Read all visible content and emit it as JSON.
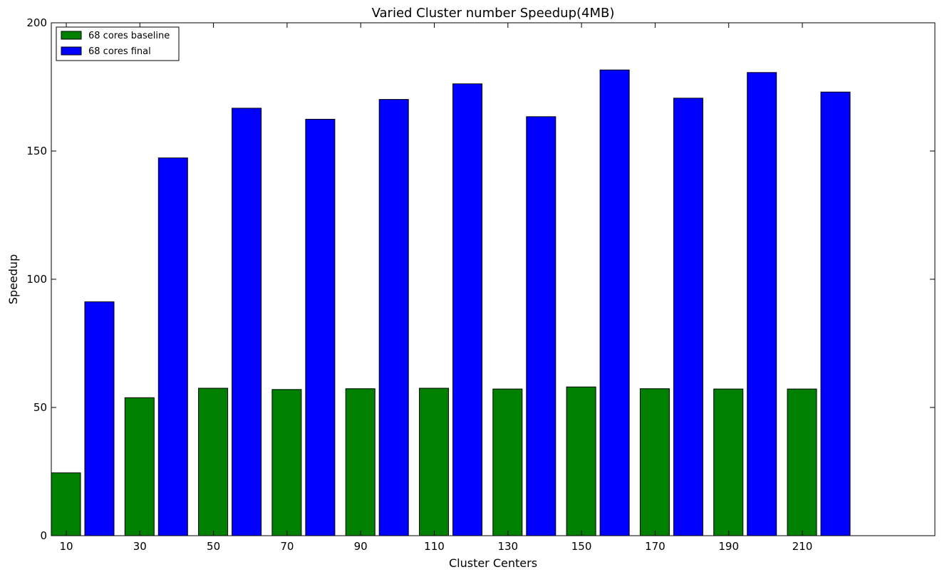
{
  "chart_data": {
    "type": "bar",
    "title": "Varied Cluster number Speedup(4MB)",
    "xlabel": "Cluster Centers",
    "ylabel": "Speedup",
    "categories": [
      "10",
      "30",
      "50",
      "70",
      "90",
      "110",
      "130",
      "150",
      "170",
      "190",
      "210"
    ],
    "ylim": [
      0,
      200
    ],
    "yticks": [
      "0",
      "50",
      "100",
      "150",
      "200"
    ],
    "grid": false,
    "legend_position": "top-left",
    "series": [
      {
        "name": "68 cores baseline",
        "color": "#008000",
        "values": [
          24.5,
          53.8,
          57.5,
          57.0,
          57.3,
          57.5,
          57.2,
          58.0,
          57.3,
          57.2,
          57.2
        ]
      },
      {
        "name": "68 cores final",
        "color": "#0000ff",
        "values": [
          91.2,
          147.3,
          166.7,
          162.4,
          170.1,
          176.2,
          163.4,
          181.6,
          170.6,
          180.6,
          173.0
        ]
      }
    ]
  }
}
